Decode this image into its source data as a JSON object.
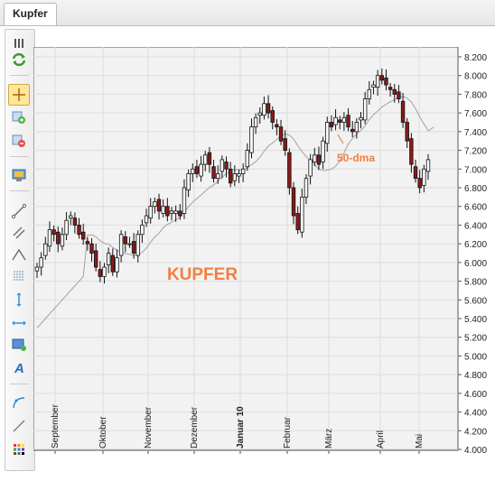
{
  "tab": {
    "label": "Kupfer"
  },
  "toolbar": {
    "tools": [
      {
        "name": "panel-handle-icon"
      },
      {
        "name": "refresh-icon"
      },
      {
        "name": "crosshair-icon",
        "active": true
      },
      {
        "name": "zoom-in-icon"
      },
      {
        "name": "zoom-out-icon"
      },
      {
        "name": "chart-settings-icon"
      },
      {
        "name": "trendline-icon"
      },
      {
        "name": "channel-icon"
      },
      {
        "name": "angle-icon"
      },
      {
        "name": "fibonacci-icon"
      },
      {
        "name": "vertical-line-icon"
      },
      {
        "name": "horizontal-line-icon"
      },
      {
        "name": "rectangle-icon"
      },
      {
        "name": "text-icon"
      },
      {
        "name": "arc-icon"
      },
      {
        "name": "ray-icon"
      },
      {
        "name": "palette-icon"
      }
    ]
  },
  "chart_data": {
    "type": "candlestick",
    "watermark": "KUPFER",
    "annotation": "50-dma",
    "y_ticks": [
      "4.000",
      "4.200",
      "4.400",
      "4.600",
      "4.800",
      "5.000",
      "5.200",
      "5.400",
      "5.600",
      "5.800",
      "6.000",
      "6.200",
      "6.400",
      "6.600",
      "6.800",
      "7.000",
      "7.200",
      "7.400",
      "7.600",
      "7.800",
      "8.000",
      "8.200"
    ],
    "ylim": [
      4000,
      8300
    ],
    "x_ticks": [
      {
        "label": "September",
        "bold": false
      },
      {
        "label": "Oktober",
        "bold": false
      },
      {
        "label": "November",
        "bold": false
      },
      {
        "label": "Dezember",
        "bold": false
      },
      {
        "label": "Januar 10",
        "bold": true
      },
      {
        "label": "Februar",
        "bold": false
      },
      {
        "label": "März",
        "bold": false
      },
      {
        "label": "April",
        "bold": false
      },
      {
        "label": "Mai",
        "bold": false
      }
    ],
    "grid": true,
    "colors": {
      "up": "#ffffff",
      "down": "#8b1a1a",
      "ma": "#a9a9a9",
      "watermark": "#f08040",
      "annotation": "#f08040"
    },
    "close": [
      5950,
      6050,
      6200,
      6350,
      6300,
      6200,
      6300,
      6450,
      6500,
      6400,
      6300,
      6250,
      6200,
      6100,
      5950,
      5850,
      5950,
      6100,
      5900,
      6050,
      6300,
      6200,
      6200,
      6100,
      6300,
      6400,
      6500,
      6600,
      6650,
      6550,
      6600,
      6500,
      6550,
      6550,
      6500,
      6800,
      6950,
      7000,
      6950,
      7050,
      7150,
      7050,
      6900,
      6950,
      7100,
      7000,
      6850,
      6950,
      6950,
      7000,
      7200,
      7450,
      7550,
      7600,
      7700,
      7600,
      7500,
      7450,
      7300,
      7200,
      6800,
      6500,
      6350,
      6700,
      6900,
      7100,
      7150,
      7050,
      7300,
      7500,
      7450,
      7550,
      7500,
      7550,
      7450,
      7400,
      7500,
      7550,
      7750,
      7850,
      7900,
      8000,
      7950,
      7900,
      7850,
      7800,
      7750,
      7500,
      7300,
      7050,
      6900,
      6800,
      7000,
      7100
    ]
  }
}
